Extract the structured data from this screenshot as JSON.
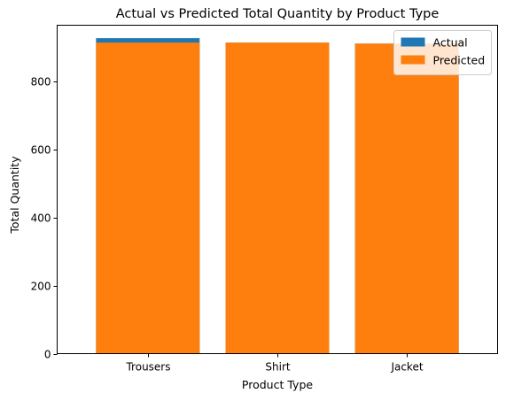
{
  "chart_data": {
    "type": "bar",
    "title": "Actual vs Predicted Total Quantity by Product Type",
    "xlabel": "Product Type",
    "ylabel": "Total Quantity",
    "categories": [
      "Trousers",
      "Shirt",
      "Jacket"
    ],
    "series": [
      {
        "name": "Actual",
        "values": [
          927,
          914,
          911
        ],
        "color": "#1f77b4"
      },
      {
        "name": "Predicted",
        "values": [
          914,
          914,
          911
        ],
        "color": "#ff7f0e"
      }
    ],
    "ylim": [
      0,
      965
    ],
    "yticks": [
      0,
      200,
      400,
      600,
      800
    ],
    "grid": false,
    "legend_position": "top-right"
  }
}
